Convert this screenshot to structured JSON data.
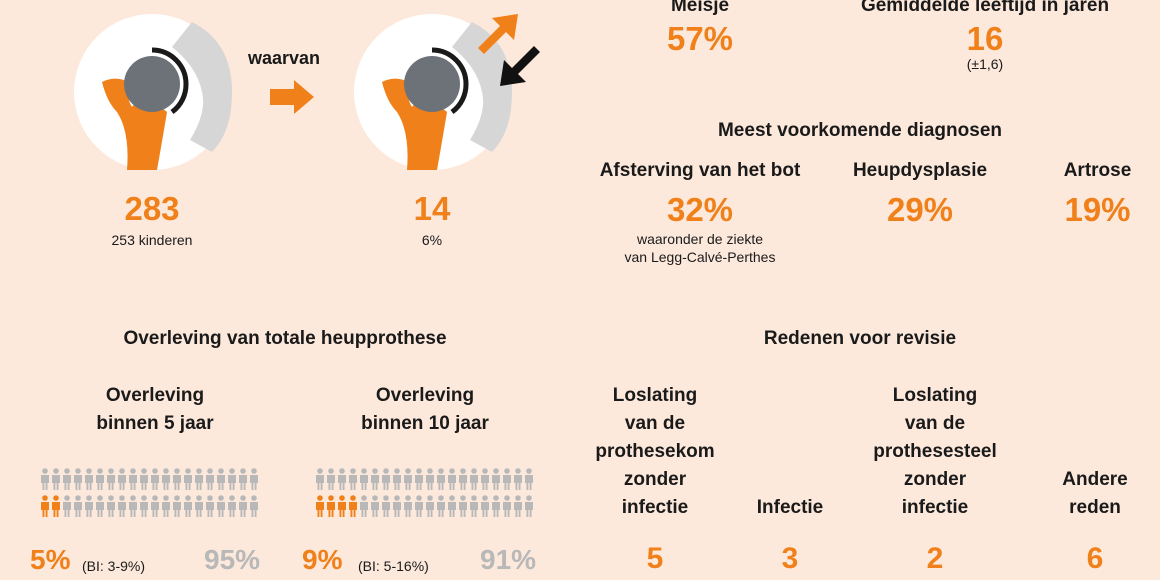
{
  "colors": {
    "orange": "#f08019",
    "grey": "#b8b8b8",
    "background": "#fde9dc",
    "bone": "#d6d6d6",
    "dark": "#6c7278"
  },
  "top_left": {
    "count1": "283",
    "count1_sub": "253 kinderen",
    "connector": "waarvan",
    "count2": "14",
    "count2_sub": "6%",
    "icons": [
      "hip-illustration-icon",
      "revised-hip-illustration-icon",
      "arrow-right-icon",
      "arrow-out-icon",
      "arrow-in-icon"
    ]
  },
  "demographics": {
    "girl_label": "Meisje",
    "girl_value": "57%",
    "age_label": "Gemiddelde leeftijd in jaren",
    "age_value": "16",
    "age_sd": "(±1,6)"
  },
  "diagnoses": {
    "title": "Meest voorkomende diagnosen",
    "items": [
      {
        "label": "Afsterving van het bot",
        "value": "32%",
        "note_line1": "waaronder de ziekte",
        "note_line2": "van Legg-Calvé-Perthes"
      },
      {
        "label": "Heupdysplasie",
        "value": "29%"
      },
      {
        "label": "Artrose",
        "value": "19%"
      }
    ]
  },
  "survival": {
    "title": "Overleving van totale heupprothese",
    "blocks": [
      {
        "label_line1": "Overleving",
        "label_line2": "binnen 5 jaar",
        "failed_value": "5%",
        "ci": "(BI: 3-9%)",
        "survived_value": "95%",
        "failed_fraction": 0.05
      },
      {
        "label_line1": "Overleving",
        "label_line2": "binnen 10 jaar",
        "failed_value": "9%",
        "ci": "(BI: 5-16%)",
        "survived_value": "91%",
        "failed_fraction": 0.09
      }
    ]
  },
  "revision": {
    "title": "Redenen voor revisie",
    "reasons": [
      {
        "lines": [
          "Loslating",
          "van de",
          "prothesekom",
          "zonder",
          "infectie"
        ],
        "count": "5"
      },
      {
        "lines": [
          "Infectie"
        ],
        "count": "3"
      },
      {
        "lines": [
          "Loslating",
          "van de",
          "prothesesteel",
          "zonder",
          "infectie"
        ],
        "count": "2"
      },
      {
        "lines": [
          "Andere",
          "reden"
        ],
        "count": "6"
      }
    ]
  }
}
